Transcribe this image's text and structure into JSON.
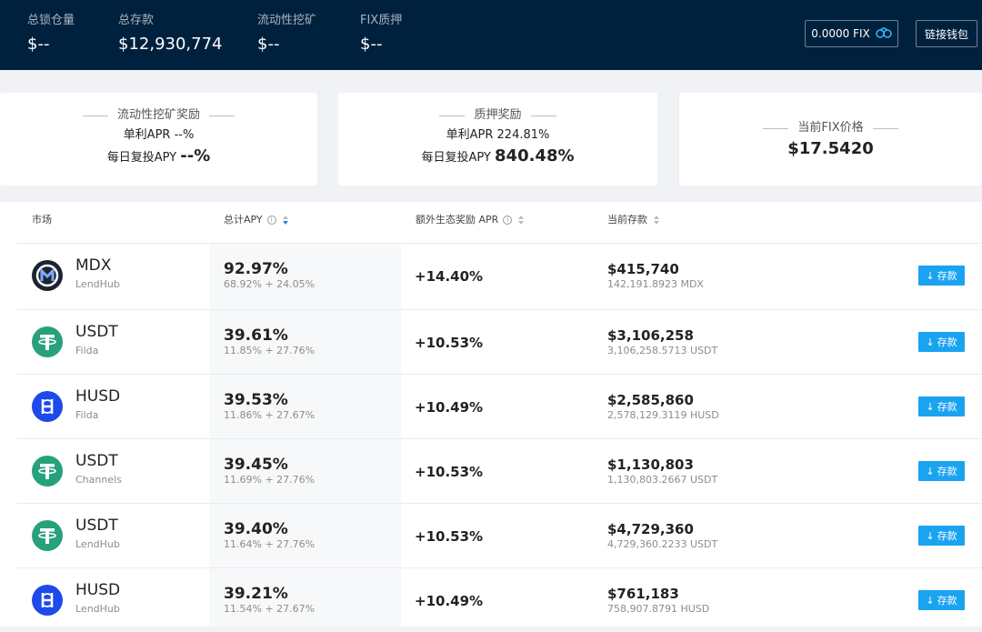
{
  "header": {
    "stats": [
      {
        "label": "总锁仓量",
        "value": "$--"
      },
      {
        "label": "总存款",
        "value": "$12,930,774"
      },
      {
        "label": "流动性挖矿",
        "value": "$--"
      },
      {
        "label": "FIX质押",
        "value": "$--"
      }
    ],
    "fix_balance": "0.0000 FIX",
    "connect_wallet": "链接钱包"
  },
  "cards": [
    {
      "title": "流动性挖矿奖励",
      "apr_label": "单利APR",
      "apr_value": "--%",
      "apy_label": "每日复投APY",
      "apy_value": "--%"
    },
    {
      "title": "质押奖励",
      "apr_label": "单利APR",
      "apr_value": "224.81%",
      "apy_label": "每日复投APY",
      "apy_value": "840.48%"
    },
    {
      "title": "当前FIX价格",
      "price": "$17.5420"
    }
  ],
  "table": {
    "columns": {
      "market": "市场",
      "total_apy": "总计APY",
      "extra_apr": "额外生态奖励 APR",
      "deposit": "当前存款"
    },
    "deposit_button": "存款",
    "rows": [
      {
        "icon": "mdx-coin-icon",
        "symbol": "MDX",
        "source": "LendHub",
        "apy": "92.97%",
        "apy_detail": "68.92% + 24.05%",
        "extra": "+14.40%",
        "deposit": "$415,740",
        "deposit_detail": "142,191.8923 MDX"
      },
      {
        "icon": "tether-coin-icon",
        "symbol": "USDT",
        "source": "Filda",
        "apy": "39.61%",
        "apy_detail": "11.85% + 27.76%",
        "extra": "+10.53%",
        "deposit": "$3,106,258",
        "deposit_detail": "3,106,258.5713 USDT"
      },
      {
        "icon": "husd-coin-icon",
        "symbol": "HUSD",
        "source": "Filda",
        "apy": "39.53%",
        "apy_detail": "11.86% + 27.67%",
        "extra": "+10.49%",
        "deposit": "$2,585,860",
        "deposit_detail": "2,578,129.3119 HUSD"
      },
      {
        "icon": "tether-coin-icon",
        "symbol": "USDT",
        "source": "Channels",
        "apy": "39.45%",
        "apy_detail": "11.69% + 27.76%",
        "extra": "+10.53%",
        "deposit": "$1,130,803",
        "deposit_detail": "1,130,803.2667 USDT"
      },
      {
        "icon": "tether-coin-icon",
        "symbol": "USDT",
        "source": "LendHub",
        "apy": "39.40%",
        "apy_detail": "11.64% + 27.76%",
        "extra": "+10.53%",
        "deposit": "$4,729,360",
        "deposit_detail": "4,729,360.2233 USDT"
      },
      {
        "icon": "husd-coin-icon",
        "symbol": "HUSD",
        "source": "LendHub",
        "apy": "39.21%",
        "apy_detail": "11.54% + 27.67%",
        "extra": "+10.49%",
        "deposit": "$761,183",
        "deposit_detail": "758,907.8791 HUSD"
      }
    ]
  },
  "colors": {
    "header_bg": "#00213d",
    "accent": "#1aa3f0",
    "tether": "#26a17b",
    "husd": "#1d4ae8",
    "mdx": "#1b2430"
  }
}
